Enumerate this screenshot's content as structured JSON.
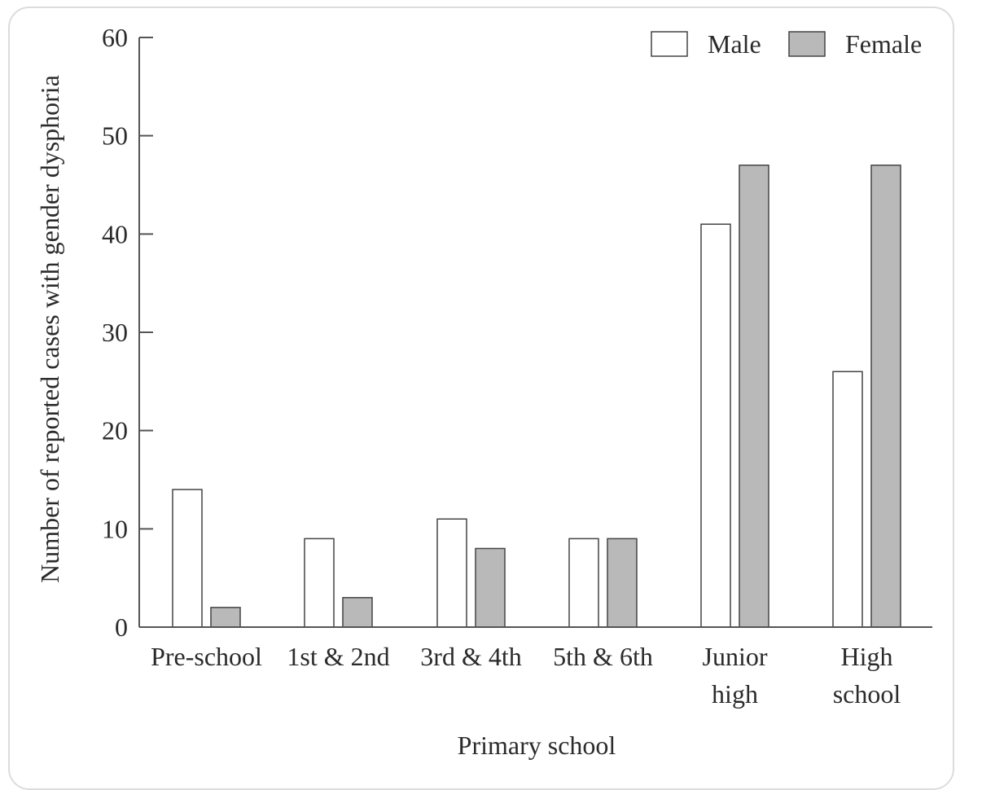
{
  "chart_data": {
    "type": "bar",
    "categories": [
      "Pre-school",
      "1st & 2nd",
      "3rd & 4th",
      "5th & 6th",
      "Junior high",
      "High school"
    ],
    "category_lines": [
      [
        "Pre-school"
      ],
      [
        "1st & 2nd"
      ],
      [
        "3rd & 4th"
      ],
      [
        "5th & 6th"
      ],
      [
        "Junior",
        "high"
      ],
      [
        "High",
        "school"
      ]
    ],
    "series": [
      {
        "name": "Male",
        "values": [
          14,
          9,
          11,
          9,
          41,
          26
        ],
        "color": "#ffffff"
      },
      {
        "name": "Female",
        "values": [
          2,
          3,
          8,
          9,
          47,
          47
        ],
        "color": "#b9b9b9"
      }
    ],
    "xlabel": "Primary school",
    "ylabel": "Number of reported cases with gender dysphoria",
    "ylim": [
      0,
      60
    ],
    "yticks": [
      0,
      10,
      20,
      30,
      40,
      50,
      60
    ],
    "grid": false,
    "legend_position": "top-right",
    "colors": {
      "axis": "#555555",
      "bar_stroke": "#444444",
      "frame": "#dcdcdc"
    }
  }
}
